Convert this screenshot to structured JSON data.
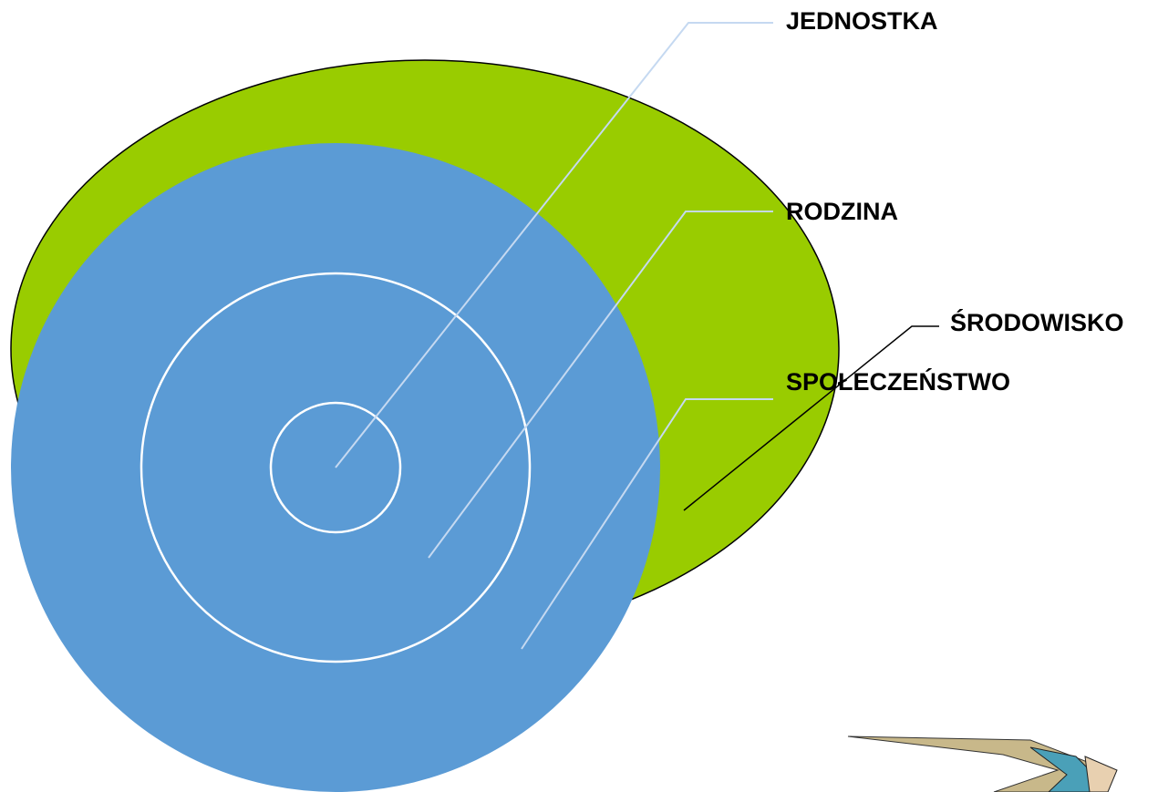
{
  "nodes": [
    {
      "label": "JEDNOSTKA"
    },
    {
      "label": "RODZINA"
    },
    {
      "label": "SPOŁECZEŃSTWO"
    },
    {
      "label": "ŚRODOWISKO"
    }
  ]
}
